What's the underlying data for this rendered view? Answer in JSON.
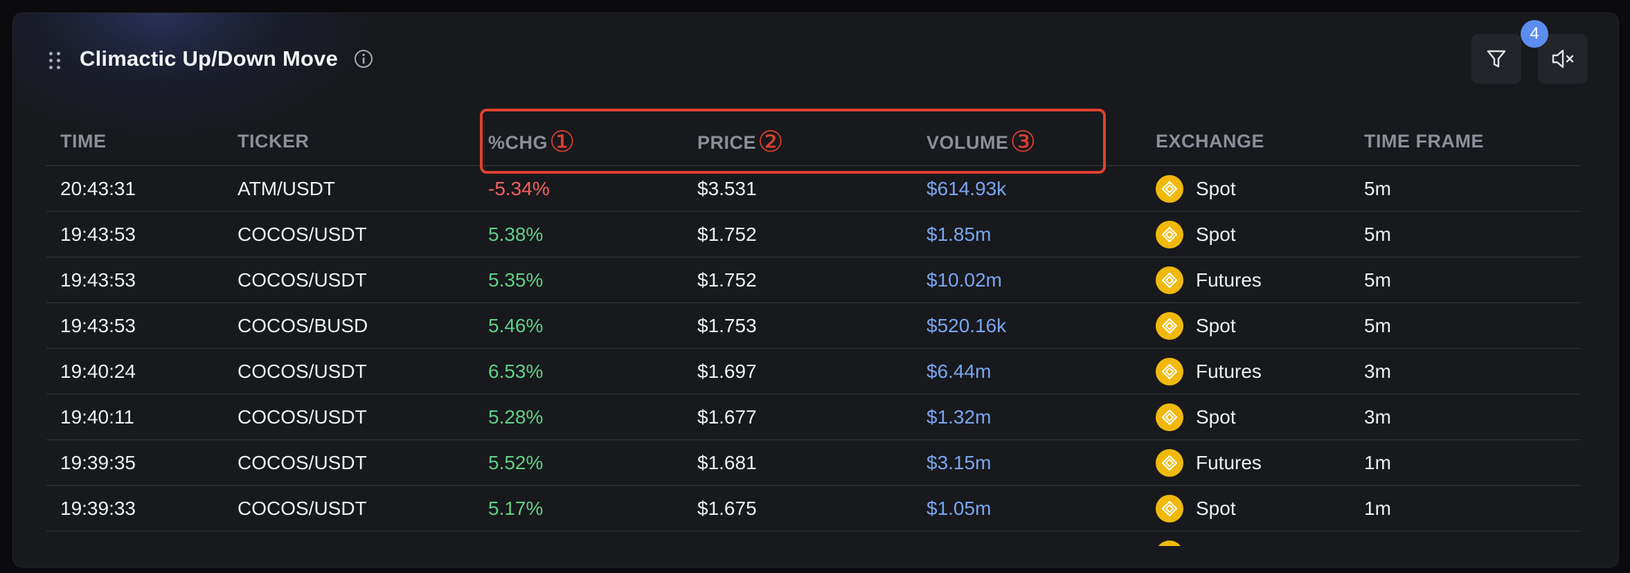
{
  "panel": {
    "title": "Climactic Up/Down Move",
    "filter_count": "4"
  },
  "icons": {
    "drag": "drag-handle-icon",
    "info": "info-icon",
    "filter": "filter-icon",
    "mute": "volume-mute-icon",
    "exchange": "binance-icon"
  },
  "colors": {
    "negative": "#f0625e",
    "positive": "#5fd087",
    "volume": "#79a6f0",
    "annotation": "#e0402f",
    "badge": "#5b8def"
  },
  "columns": [
    {
      "label": "TIME",
      "marker": ""
    },
    {
      "label": "TICKER",
      "marker": ""
    },
    {
      "label": "%CHG",
      "marker": "①"
    },
    {
      "label": "PRICE",
      "marker": "②"
    },
    {
      "label": "VOLUME",
      "marker": "③"
    },
    {
      "label": "EXCHANGE",
      "marker": ""
    },
    {
      "label": "TIME FRAME",
      "marker": ""
    }
  ],
  "rows": [
    {
      "time": "20:43:31",
      "ticker": "ATM/USDT",
      "chg": "-5.34%",
      "direction": "negative",
      "price": "$3.531",
      "volume": "$614.93k",
      "exchange": "Spot",
      "timeframe": "5m"
    },
    {
      "time": "19:43:53",
      "ticker": "COCOS/USDT",
      "chg": "5.38%",
      "direction": "positive",
      "price": "$1.752",
      "volume": "$1.85m",
      "exchange": "Spot",
      "timeframe": "5m"
    },
    {
      "time": "19:43:53",
      "ticker": "COCOS/USDT",
      "chg": "5.35%",
      "direction": "positive",
      "price": "$1.752",
      "volume": "$10.02m",
      "exchange": "Futures",
      "timeframe": "5m"
    },
    {
      "time": "19:43:53",
      "ticker": "COCOS/BUSD",
      "chg": "5.46%",
      "direction": "positive",
      "price": "$1.753",
      "volume": "$520.16k",
      "exchange": "Spot",
      "timeframe": "5m"
    },
    {
      "time": "19:40:24",
      "ticker": "COCOS/USDT",
      "chg": "6.53%",
      "direction": "positive",
      "price": "$1.697",
      "volume": "$6.44m",
      "exchange": "Futures",
      "timeframe": "3m"
    },
    {
      "time": "19:40:11",
      "ticker": "COCOS/USDT",
      "chg": "5.28%",
      "direction": "positive",
      "price": "$1.677",
      "volume": "$1.32m",
      "exchange": "Spot",
      "timeframe": "3m"
    },
    {
      "time": "19:39:35",
      "ticker": "COCOS/USDT",
      "chg": "5.52%",
      "direction": "positive",
      "price": "$1.681",
      "volume": "$3.15m",
      "exchange": "Futures",
      "timeframe": "1m"
    },
    {
      "time": "19:39:33",
      "ticker": "COCOS/USDT",
      "chg": "5.17%",
      "direction": "positive",
      "price": "$1.675",
      "volume": "$1.05m",
      "exchange": "Spot",
      "timeframe": "1m"
    }
  ]
}
